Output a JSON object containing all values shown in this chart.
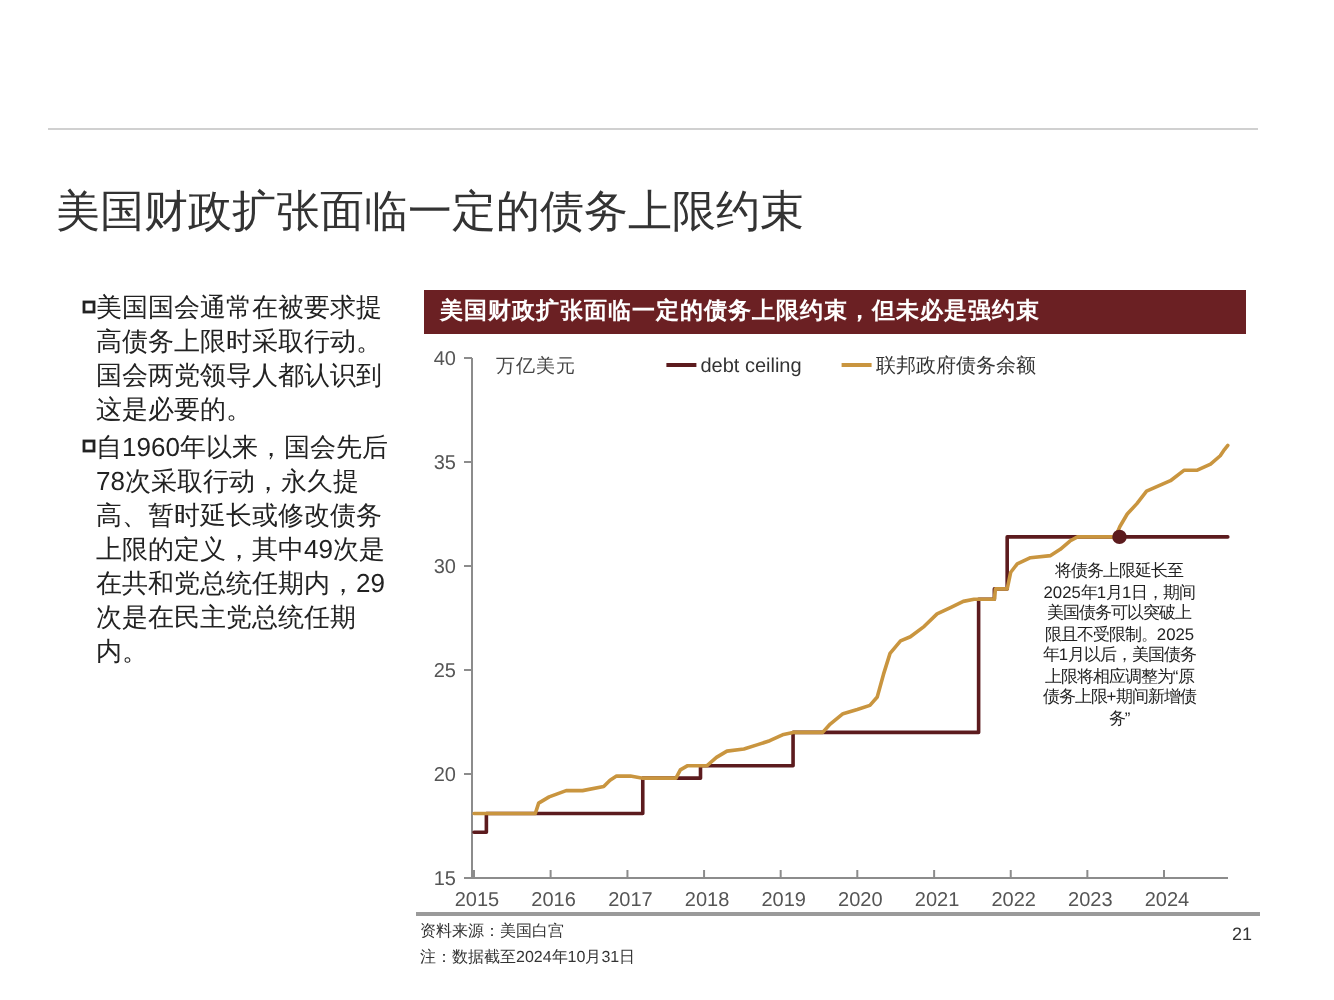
{
  "chart_data": {
    "type": "line",
    "title": "美国财政扩张面临一定的债务上限约束",
    "subtitle": "美国财政扩张面临一定的债务上限约束，但未必是强约束",
    "ylabel": "万亿美元",
    "series": [
      {
        "name": "debt ceiling",
        "type": "step",
        "color": "#5c1b1e",
        "x": [
          "2015-01-01",
          "2015-03-01",
          "2017-03-15",
          "2017-12-15",
          "2019-03-01",
          "2021-08-01",
          "2021-10-15",
          "2021-12-15",
          "2024-10-31"
        ],
        "values": [
          17.2,
          18.1,
          19.8,
          20.4,
          22.0,
          28.4,
          28.9,
          31.4,
          31.4
        ]
      },
      {
        "name": "联邦政府债务余额",
        "type": "line",
        "color": "#c9953f",
        "x": [
          "2015-01-01",
          "2015-10-20",
          "2015-11-05",
          "2015-12-25",
          "2016-03-15",
          "2016-06-01",
          "2016-09-10",
          "2016-10-10",
          "2016-11-10",
          "2017-01-15",
          "2017-03-15",
          "2017-08-20",
          "2017-09-10",
          "2017-10-15",
          "2017-12-01",
          "2018-01-15",
          "2018-03-01",
          "2018-04-20",
          "2018-07-10",
          "2018-09-10",
          "2018-11-10",
          "2019-01-15",
          "2019-03-01",
          "2019-07-20",
          "2019-08-25",
          "2019-10-25",
          "2020-01-01",
          "2020-03-01",
          "2020-04-05",
          "2020-05-05",
          "2020-06-05",
          "2020-07-25",
          "2020-09-10",
          "2020-11-15",
          "2021-01-15",
          "2021-03-20",
          "2021-05-20",
          "2021-07-10",
          "2021-10-15",
          "2021-10-20",
          "2021-12-15",
          "2022-01-01",
          "2022-02-01",
          "2022-04-05",
          "2022-07-10",
          "2022-08-25",
          "2022-10-10",
          "2022-11-15",
          "2023-05-15",
          "2023-06-05",
          "2023-07-10",
          "2023-08-25",
          "2023-10-10",
          "2023-11-25",
          "2024-02-01",
          "2024-04-05",
          "2024-06-05",
          "2024-08-10",
          "2024-09-25",
          "2024-10-15",
          "2024-10-31"
        ],
        "values": [
          18.1,
          18.1,
          18.6,
          18.9,
          19.2,
          19.2,
          19.4,
          19.7,
          19.9,
          19.9,
          19.8,
          19.8,
          20.2,
          20.4,
          20.4,
          20.4,
          20.8,
          21.1,
          21.2,
          21.4,
          21.6,
          21.9,
          22.0,
          22.0,
          22.4,
          22.9,
          23.1,
          23.3,
          23.7,
          24.8,
          25.8,
          26.4,
          26.6,
          27.1,
          27.7,
          28.0,
          28.3,
          28.4,
          28.4,
          28.9,
          28.9,
          29.7,
          30.1,
          30.4,
          30.5,
          30.8,
          31.2,
          31.4,
          31.4,
          31.9,
          32.5,
          33.0,
          33.6,
          33.8,
          34.1,
          34.6,
          34.6,
          34.9,
          35.3,
          35.6,
          35.8
        ]
      }
    ],
    "xlim": [
      "2015-01-01",
      "2024-11-01"
    ],
    "xticks": [
      "2015",
      "2016",
      "2017",
      "2018",
      "2019",
      "2020",
      "2021",
      "2022",
      "2023",
      "2024"
    ],
    "ylim": [
      15,
      40
    ],
    "yticks": [
      15,
      20,
      25,
      30,
      35,
      40
    ],
    "legend": "top",
    "annotations": [
      "美国国会通常在被要求提高债务上限时采取行动。国会两党领导人都认识到这是必要的。",
      "自1960年以来，国会先后78次采取行动，永久提高、暂时延长或修改债务上限的定义，其中49次是在共和党总统任期内，29次是在民主党总统任期内。",
      {
        "text": "将债务上限延长至2025年1月1日，期间美国债务可以突破上限且不受限制。2025年1月以后，美国债务上限将相应调整为“原债务上限+期间新增债务”",
        "x": "2023-06-03",
        "y": 31.4
      },
      "资料来源：美国白宫",
      "注：数据截至2024年10月31日",
      "21"
    ]
  }
}
